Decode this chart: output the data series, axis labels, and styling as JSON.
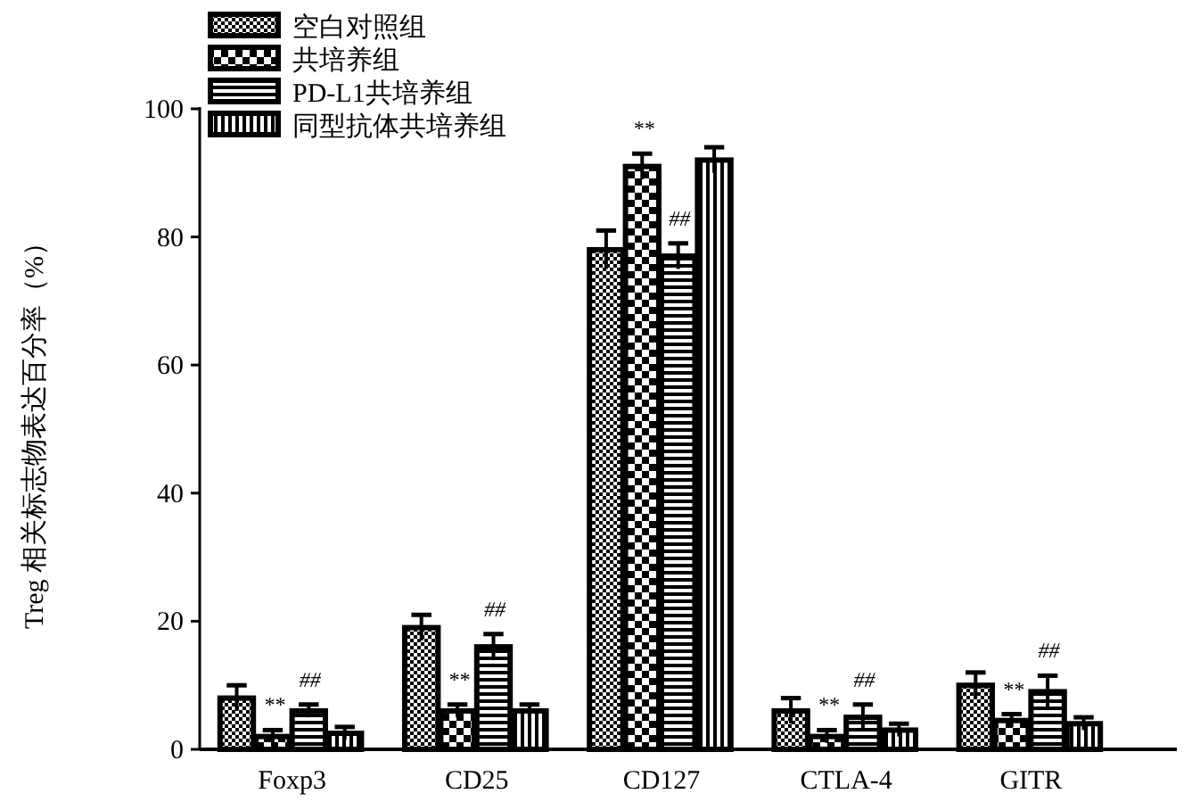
{
  "chart_data": {
    "type": "bar",
    "ylabel": "Treg 相关标志物表达百分率（%）",
    "categories": [
      "Foxp3",
      "CD25",
      "CD127",
      "CTLA-4",
      "GITR"
    ],
    "series": [
      {
        "name": "空白对照组",
        "color": "#000000",
        "values": [
          8,
          19,
          78,
          6,
          10
        ],
        "errors": [
          2,
          2,
          3,
          2,
          2
        ]
      },
      {
        "name": "共培养组",
        "color": "#000000",
        "values": [
          2,
          6,
          91,
          2,
          4.5
        ],
        "errors": [
          1,
          1,
          2,
          1,
          1
        ]
      },
      {
        "name": "PD-L1共培养组",
        "color": "#000000",
        "values": [
          6,
          16,
          77,
          5,
          9
        ],
        "errors": [
          1,
          2,
          2,
          2,
          2.5
        ]
      },
      {
        "name": "同型抗体共培养组",
        "color": "#000000",
        "values": [
          2.5,
          6,
          92,
          3,
          4
        ],
        "errors": [
          1,
          1,
          2,
          1,
          1
        ]
      }
    ],
    "ylim": [
      0,
      100
    ],
    "yticks": [
      0,
      20,
      40,
      60,
      80,
      100
    ],
    "legend": "top left",
    "grid": false,
    "annotations": [
      "**",
      "##",
      "**",
      "##",
      "**",
      "##",
      "**",
      "##",
      "**",
      "##"
    ]
  }
}
